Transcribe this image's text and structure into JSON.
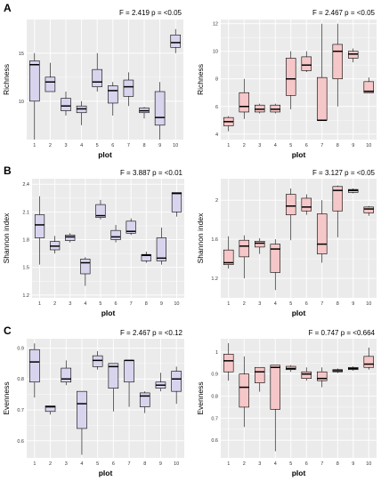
{
  "panel_labels": [
    "A",
    "B",
    "C"
  ],
  "colors": {
    "purple_fill": "#D9D4EE",
    "pink_fill": "#F6C7C8",
    "plot_bg": "#EBEBEB",
    "grid": "#FFFFFF",
    "line": "#000000"
  },
  "chart_data": [
    {
      "type": "box",
      "panel": "A",
      "position": "left",
      "stat_text": "F = 2.419   p = <0.05",
      "xlabel": "plot",
      "ylabel": "Richness",
      "ylim": [
        6,
        18.5
      ],
      "yticks": [
        10,
        15
      ],
      "categories": [
        "1",
        "2",
        "3",
        "4",
        "5",
        "6",
        "7",
        "8",
        "9",
        "10"
      ],
      "boxes": [
        {
          "whislo": 6,
          "q1": 10,
          "med": 13.8,
          "q3": 14.2,
          "whishi": 15
        },
        {
          "whislo": 11,
          "q1": 11,
          "med": 12,
          "q3": 12.5,
          "whishi": 14
        },
        {
          "whislo": 8.5,
          "q1": 9,
          "med": 9.5,
          "q3": 10.3,
          "whishi": 11
        },
        {
          "whislo": 7.5,
          "q1": 8.8,
          "med": 9.2,
          "q3": 9.5,
          "whishi": 10
        },
        {
          "whislo": 11,
          "q1": 11.5,
          "med": 12,
          "q3": 13.3,
          "whishi": 15
        },
        {
          "whislo": 8.5,
          "q1": 9.8,
          "med": 11.1,
          "q3": 11.6,
          "whishi": 12
        },
        {
          "whislo": 9.5,
          "q1": 10.5,
          "med": 11.5,
          "q3": 12.2,
          "whishi": 13
        },
        {
          "whislo": 8.2,
          "q1": 8.8,
          "med": 9,
          "q3": 9.3,
          "whishi": 9.4
        },
        {
          "whislo": 6,
          "q1": 7.5,
          "med": 8.3,
          "q3": 11,
          "whishi": 12
        },
        {
          "whislo": 15,
          "q1": 15.6,
          "med": 16.1,
          "q3": 16.9,
          "whishi": 17.5
        }
      ]
    },
    {
      "type": "box",
      "panel": "A",
      "position": "right",
      "stat_text": "F = 2.467   p = <0.05",
      "xlabel": "plot",
      "ylabel": "Richness",
      "ylim": [
        3.6,
        12.3
      ],
      "yticks": [
        4,
        6,
        8,
        10,
        12
      ],
      "categories": [
        "1",
        "2",
        "3",
        "4",
        "5",
        "6",
        "7",
        "8",
        "9",
        "10"
      ],
      "boxes": [
        {
          "whislo": 4.2,
          "q1": 4.6,
          "med": 4.9,
          "q3": 5.2,
          "whishi": 5.3
        },
        {
          "whislo": 5.1,
          "q1": 5.6,
          "med": 6,
          "q3": 7,
          "whishi": 8
        },
        {
          "whislo": 5.5,
          "q1": 5.6,
          "med": 5.8,
          "q3": 6.1,
          "whishi": 6.2
        },
        {
          "whislo": 5.5,
          "q1": 5.6,
          "med": 5.8,
          "q3": 6.1,
          "whishi": 6.2
        },
        {
          "whislo": 5.8,
          "q1": 6.8,
          "med": 8,
          "q3": 9.5,
          "whishi": 10
        },
        {
          "whislo": 8.5,
          "q1": 8.6,
          "med": 9,
          "q3": 9.6,
          "whishi": 10
        },
        {
          "whislo": 5,
          "q1": 5,
          "med": 5,
          "q3": 8.1,
          "whishi": 12
        },
        {
          "whislo": 6,
          "q1": 8,
          "med": 10,
          "q3": 10.5,
          "whishi": 12
        },
        {
          "whislo": 9.2,
          "q1": 9.5,
          "med": 9.8,
          "q3": 10,
          "whishi": 10.2
        },
        {
          "whislo": 7,
          "q1": 7,
          "med": 7.1,
          "q3": 7.8,
          "whishi": 8.1
        }
      ]
    },
    {
      "type": "box",
      "panel": "B",
      "position": "left",
      "stat_text": "F = 3.887   p = <0.01",
      "xlabel": "plot",
      "ylabel": "Shannon index",
      "ylim": [
        1.17,
        2.46
      ],
      "yticks": [
        1.2,
        1.5,
        1.8,
        2.1,
        2.4
      ],
      "categories": [
        "1",
        "2",
        "3",
        "4",
        "5",
        "6",
        "7",
        "8",
        "9",
        "10"
      ],
      "boxes": [
        {
          "whislo": 1.53,
          "q1": 1.82,
          "med": 1.96,
          "q3": 2.07,
          "whishi": 2.27
        },
        {
          "whislo": 1.65,
          "q1": 1.69,
          "med": 1.73,
          "q3": 1.78,
          "whishi": 1.84
        },
        {
          "whislo": 1.77,
          "q1": 1.79,
          "med": 1.83,
          "q3": 1.85,
          "whishi": 1.87
        },
        {
          "whislo": 1.3,
          "q1": 1.43,
          "med": 1.55,
          "q3": 1.59,
          "whishi": 1.61
        },
        {
          "whislo": 2.02,
          "q1": 2.04,
          "med": 2.06,
          "q3": 2.18,
          "whishi": 2.23
        },
        {
          "whislo": 1.77,
          "q1": 1.8,
          "med": 1.83,
          "q3": 1.9,
          "whishi": 1.96
        },
        {
          "whislo": 1.85,
          "q1": 1.87,
          "med": 1.89,
          "q3": 2.0,
          "whishi": 2.03
        },
        {
          "whislo": 1.55,
          "q1": 1.57,
          "med": 1.63,
          "q3": 1.64,
          "whishi": 1.67
        },
        {
          "whislo": 1.53,
          "q1": 1.57,
          "med": 1.6,
          "q3": 1.82,
          "whishi": 1.93
        },
        {
          "whislo": 2.05,
          "q1": 2.1,
          "med": 2.3,
          "q3": 2.31,
          "whishi": 2.31
        }
      ]
    },
    {
      "type": "box",
      "panel": "B",
      "position": "right",
      "stat_text": "F = 3.127   p = <0.05",
      "xlabel": "plot",
      "ylabel": "Shannon index",
      "ylim": [
        1.0,
        2.22
      ],
      "yticks": [
        1.2,
        1.6,
        2.0
      ],
      "categories": [
        "1",
        "2",
        "3",
        "4",
        "5",
        "6",
        "7",
        "8",
        "9",
        "10"
      ],
      "boxes": [
        {
          "whislo": 1.3,
          "q1": 1.34,
          "med": 1.36,
          "q3": 1.49,
          "whishi": 1.63
        },
        {
          "whislo": 1.2,
          "q1": 1.42,
          "med": 1.53,
          "q3": 1.59,
          "whishi": 1.64
        },
        {
          "whislo": 1.45,
          "q1": 1.52,
          "med": 1.56,
          "q3": 1.58,
          "whishi": 1.61
        },
        {
          "whislo": 1.08,
          "q1": 1.26,
          "med": 1.5,
          "q3": 1.55,
          "whishi": 1.6
        },
        {
          "whislo": 1.59,
          "q1": 1.85,
          "med": 1.94,
          "q3": 2.06,
          "whishi": 2.12
        },
        {
          "whislo": 1.85,
          "q1": 1.89,
          "med": 1.93,
          "q3": 2.02,
          "whishi": 2.06
        },
        {
          "whislo": 1.36,
          "q1": 1.45,
          "med": 1.55,
          "q3": 1.86,
          "whishi": 2.0
        },
        {
          "whislo": 1.62,
          "q1": 1.89,
          "med": 2.1,
          "q3": 2.14,
          "whishi": 2.15
        },
        {
          "whislo": 2.07,
          "q1": 2.08,
          "med": 2.1,
          "q3": 2.11,
          "whishi": 2.12
        },
        {
          "whislo": 1.84,
          "q1": 1.87,
          "med": 1.91,
          "q3": 1.93,
          "whishi": 1.94
        }
      ]
    },
    {
      "type": "box",
      "panel": "C",
      "position": "left",
      "stat_text": "F = 2.467   p = <0.12",
      "xlabel": "plot",
      "ylabel": "Evenness",
      "ylim": [
        0.545,
        0.93
      ],
      "yticks": [
        0.6,
        0.7,
        0.8,
        0.9
      ],
      "categories": [
        "1",
        "2",
        "3",
        "4",
        "5",
        "6",
        "7",
        "8",
        "9",
        "10"
      ],
      "boxes": [
        {
          "whislo": 0.74,
          "q1": 0.79,
          "med": 0.855,
          "q3": 0.895,
          "whishi": 0.915
        },
        {
          "whislo": 0.685,
          "q1": 0.695,
          "med": 0.71,
          "q3": 0.713,
          "whishi": 0.713
        },
        {
          "whislo": 0.78,
          "q1": 0.79,
          "med": 0.8,
          "q3": 0.835,
          "whishi": 0.86
        },
        {
          "whislo": 0.555,
          "q1": 0.64,
          "med": 0.72,
          "q3": 0.76,
          "whishi": 0.76
        },
        {
          "whislo": 0.83,
          "q1": 0.84,
          "med": 0.86,
          "q3": 0.875,
          "whishi": 0.89
        },
        {
          "whislo": 0.695,
          "q1": 0.77,
          "med": 0.84,
          "q3": 0.85,
          "whishi": 0.85
        },
        {
          "whislo": 0.71,
          "q1": 0.79,
          "med": 0.86,
          "q3": 0.86,
          "whishi": 0.86
        },
        {
          "whislo": 0.69,
          "q1": 0.71,
          "med": 0.745,
          "q3": 0.755,
          "whishi": 0.76
        },
        {
          "whislo": 0.76,
          "q1": 0.77,
          "med": 0.78,
          "q3": 0.79,
          "whishi": 0.82
        },
        {
          "whislo": 0.72,
          "q1": 0.76,
          "med": 0.8,
          "q3": 0.825,
          "whishi": 0.84
        }
      ]
    },
    {
      "type": "box",
      "panel": "C",
      "position": "right",
      "stat_text": "F = 0.747   p = <0.664",
      "xlabel": "plot",
      "ylabel": "Evenness",
      "ylim": [
        0.52,
        1.06
      ],
      "yticks": [
        0.6,
        0.7,
        0.8,
        0.9,
        1.0
      ],
      "categories": [
        "1",
        "2",
        "3",
        "4",
        "5",
        "6",
        "7",
        "8",
        "9",
        "10"
      ],
      "boxes": [
        {
          "whislo": 0.87,
          "q1": 0.91,
          "med": 0.96,
          "q3": 0.99,
          "whishi": 1.04
        },
        {
          "whislo": 0.66,
          "q1": 0.75,
          "med": 0.84,
          "q3": 0.9,
          "whishi": 0.98
        },
        {
          "whislo": 0.82,
          "q1": 0.86,
          "med": 0.91,
          "q3": 0.93,
          "whishi": 0.93
        },
        {
          "whislo": 0.55,
          "q1": 0.74,
          "med": 0.93,
          "q3": 0.94,
          "whishi": 0.94
        },
        {
          "whislo": 0.91,
          "q1": 0.92,
          "med": 0.925,
          "q3": 0.935,
          "whishi": 0.94
        },
        {
          "whislo": 0.87,
          "q1": 0.88,
          "med": 0.9,
          "q3": 0.91,
          "whishi": 0.93
        },
        {
          "whislo": 0.84,
          "q1": 0.87,
          "med": 0.88,
          "q3": 0.91,
          "whishi": 0.93
        },
        {
          "whislo": 0.905,
          "q1": 0.91,
          "med": 0.915,
          "q3": 0.92,
          "whishi": 0.925
        },
        {
          "whislo": 0.915,
          "q1": 0.92,
          "med": 0.925,
          "q3": 0.93,
          "whishi": 0.935
        },
        {
          "whislo": 0.92,
          "q1": 0.93,
          "med": 0.945,
          "q3": 0.98,
          "whishi": 1.02
        }
      ]
    }
  ]
}
